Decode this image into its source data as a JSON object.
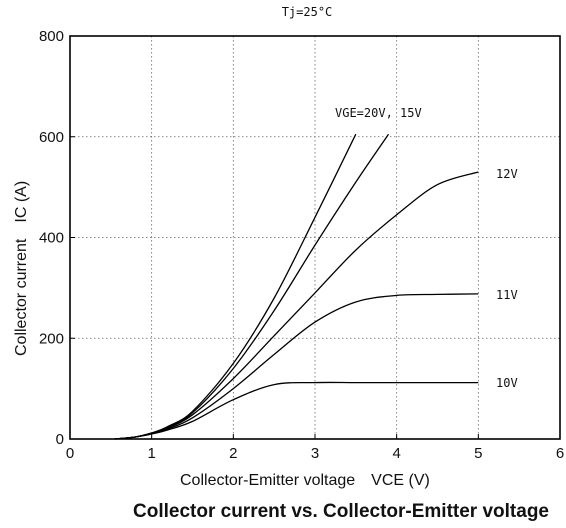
{
  "chart_data": {
    "type": "line",
    "title": "Tj=25°C",
    "caption": "Collector current vs. Collector-Emitter voltage",
    "xlabel": "Collector-Emitter voltage　VCE (V)",
    "ylabel": "Collector current　IC (A)",
    "xlim": [
      0,
      6
    ],
    "ylim": [
      0,
      800
    ],
    "xticks": [
      "0",
      "1",
      "2",
      "3",
      "4",
      "5",
      "6"
    ],
    "yticks": [
      "0",
      "200",
      "400",
      "600",
      "800"
    ],
    "grid": true,
    "series": [
      {
        "name": "VGE=20V",
        "x": [
          0.55,
          0.8,
          1.0,
          1.2,
          1.5,
          2.0,
          2.5,
          3.0,
          3.5
        ],
        "y": [
          0,
          4,
          12,
          25,
          55,
          150,
          280,
          440,
          605
        ]
      },
      {
        "name": "15V",
        "x": [
          0.55,
          0.8,
          1.0,
          1.2,
          1.5,
          2.0,
          2.5,
          3.0,
          3.5,
          3.9
        ],
        "y": [
          0,
          4,
          12,
          24,
          52,
          140,
          255,
          385,
          510,
          605
        ]
      },
      {
        "name": "12V",
        "x": [
          0.55,
          0.8,
          1.0,
          1.2,
          1.5,
          2.0,
          2.5,
          3.0,
          3.5,
          4.0,
          4.5,
          5.0
        ],
        "y": [
          0,
          4,
          11,
          22,
          48,
          120,
          205,
          290,
          375,
          445,
          505,
          530
        ]
      },
      {
        "name": "11V",
        "x": [
          0.55,
          0.8,
          1.0,
          1.2,
          1.5,
          2.0,
          2.5,
          3.0,
          3.5,
          4.0,
          4.5,
          5.0
        ],
        "y": [
          0,
          4,
          11,
          20,
          42,
          100,
          168,
          232,
          272,
          285,
          287,
          288
        ]
      },
      {
        "name": "10V",
        "x": [
          0.55,
          0.8,
          1.0,
          1.2,
          1.5,
          2.0,
          2.5,
          3.0,
          3.5,
          4.0,
          5.0
        ],
        "y": [
          0,
          4,
          10,
          18,
          35,
          78,
          108,
          112,
          112,
          112,
          112
        ]
      }
    ],
    "annotations": [
      "VGE=20V, 15V",
      "12V",
      "11V",
      "10V"
    ]
  }
}
